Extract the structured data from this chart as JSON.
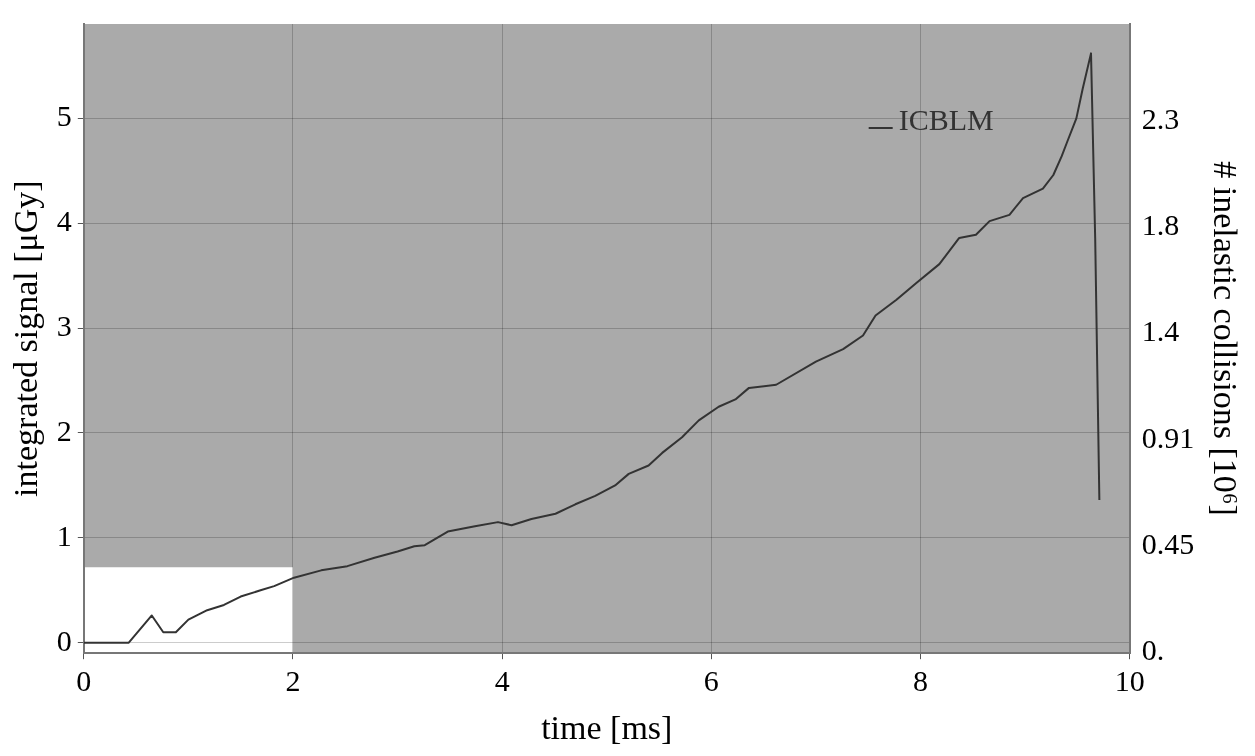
{
  "chart_data": {
    "type": "line",
    "xlabel": "time [ms]",
    "ylabel": "integrated signal [μGy]",
    "y2label": "# inelastic collisions [10⁶]",
    "xlim": [
      0,
      10
    ],
    "xticks": [
      0,
      2,
      4,
      6,
      8,
      10
    ],
    "ylim": [
      -0.1,
      5.9
    ],
    "yticks": [
      0,
      1,
      2,
      3,
      4,
      5
    ],
    "y2lim": [
      -0.004,
      2.69
    ],
    "y2ticks": [
      {
        "value": 0,
        "label": "0."
      },
      {
        "value": 0.455,
        "label": "0.45"
      },
      {
        "value": 0.91,
        "label": "0.91"
      },
      {
        "value": 1.365,
        "label": "1.4"
      },
      {
        "value": 1.82,
        "label": "1.8"
      },
      {
        "value": 2.275,
        "label": "2.3"
      }
    ],
    "grid": true,
    "legend": "top right",
    "marker": "none",
    "line_style": "solid",
    "bands": [
      {
        "axis": "y",
        "from": 0.72,
        "to": 5.9,
        "color": "#aaaaaa"
      },
      {
        "axis": "x",
        "from": 2,
        "to": 10,
        "color": "#aaaaaa"
      }
    ],
    "x": [
      0,
      0.43,
      0.65,
      0.76,
      0.88,
      1.0,
      1.18,
      1.34,
      1.5,
      1.69,
      1.82,
      2.01,
      2.27,
      2.52,
      2.78,
      3.0,
      3.16,
      3.26,
      3.48,
      3.74,
      3.96,
      4.09,
      4.28,
      4.51,
      4.7,
      4.89,
      5.08,
      5.21,
      5.4,
      5.53,
      5.72,
      5.88,
      6.07,
      6.23,
      6.36,
      6.62,
      7.0,
      7.26,
      7.45,
      7.57,
      7.77,
      7.96,
      8.18,
      8.37,
      8.53,
      8.66,
      8.85,
      8.98,
      9.17,
      9.27,
      9.35,
      9.4,
      9.49,
      9.55,
      9.63,
      9.67,
      9.71
    ],
    "series": [
      {
        "name": "ICBLM",
        "color": "#333333",
        "values": [
          0,
          0,
          0.26,
          0.1,
          0.1,
          0.22,
          0.31,
          0.36,
          0.44,
          0.5,
          0.54,
          0.62,
          0.69,
          0.73,
          0.81,
          0.87,
          0.92,
          0.93,
          1.06,
          1.11,
          1.15,
          1.12,
          1.18,
          1.23,
          1.32,
          1.4,
          1.5,
          1.61,
          1.69,
          1.81,
          1.96,
          2.12,
          2.25,
          2.32,
          2.43,
          2.46,
          2.68,
          2.8,
          2.93,
          3.12,
          3.27,
          3.43,
          3.61,
          3.86,
          3.89,
          4.02,
          4.08,
          4.24,
          4.33,
          4.46,
          4.64,
          4.77,
          5.0,
          5.28,
          5.62,
          3.86,
          1.36
        ]
      }
    ]
  }
}
